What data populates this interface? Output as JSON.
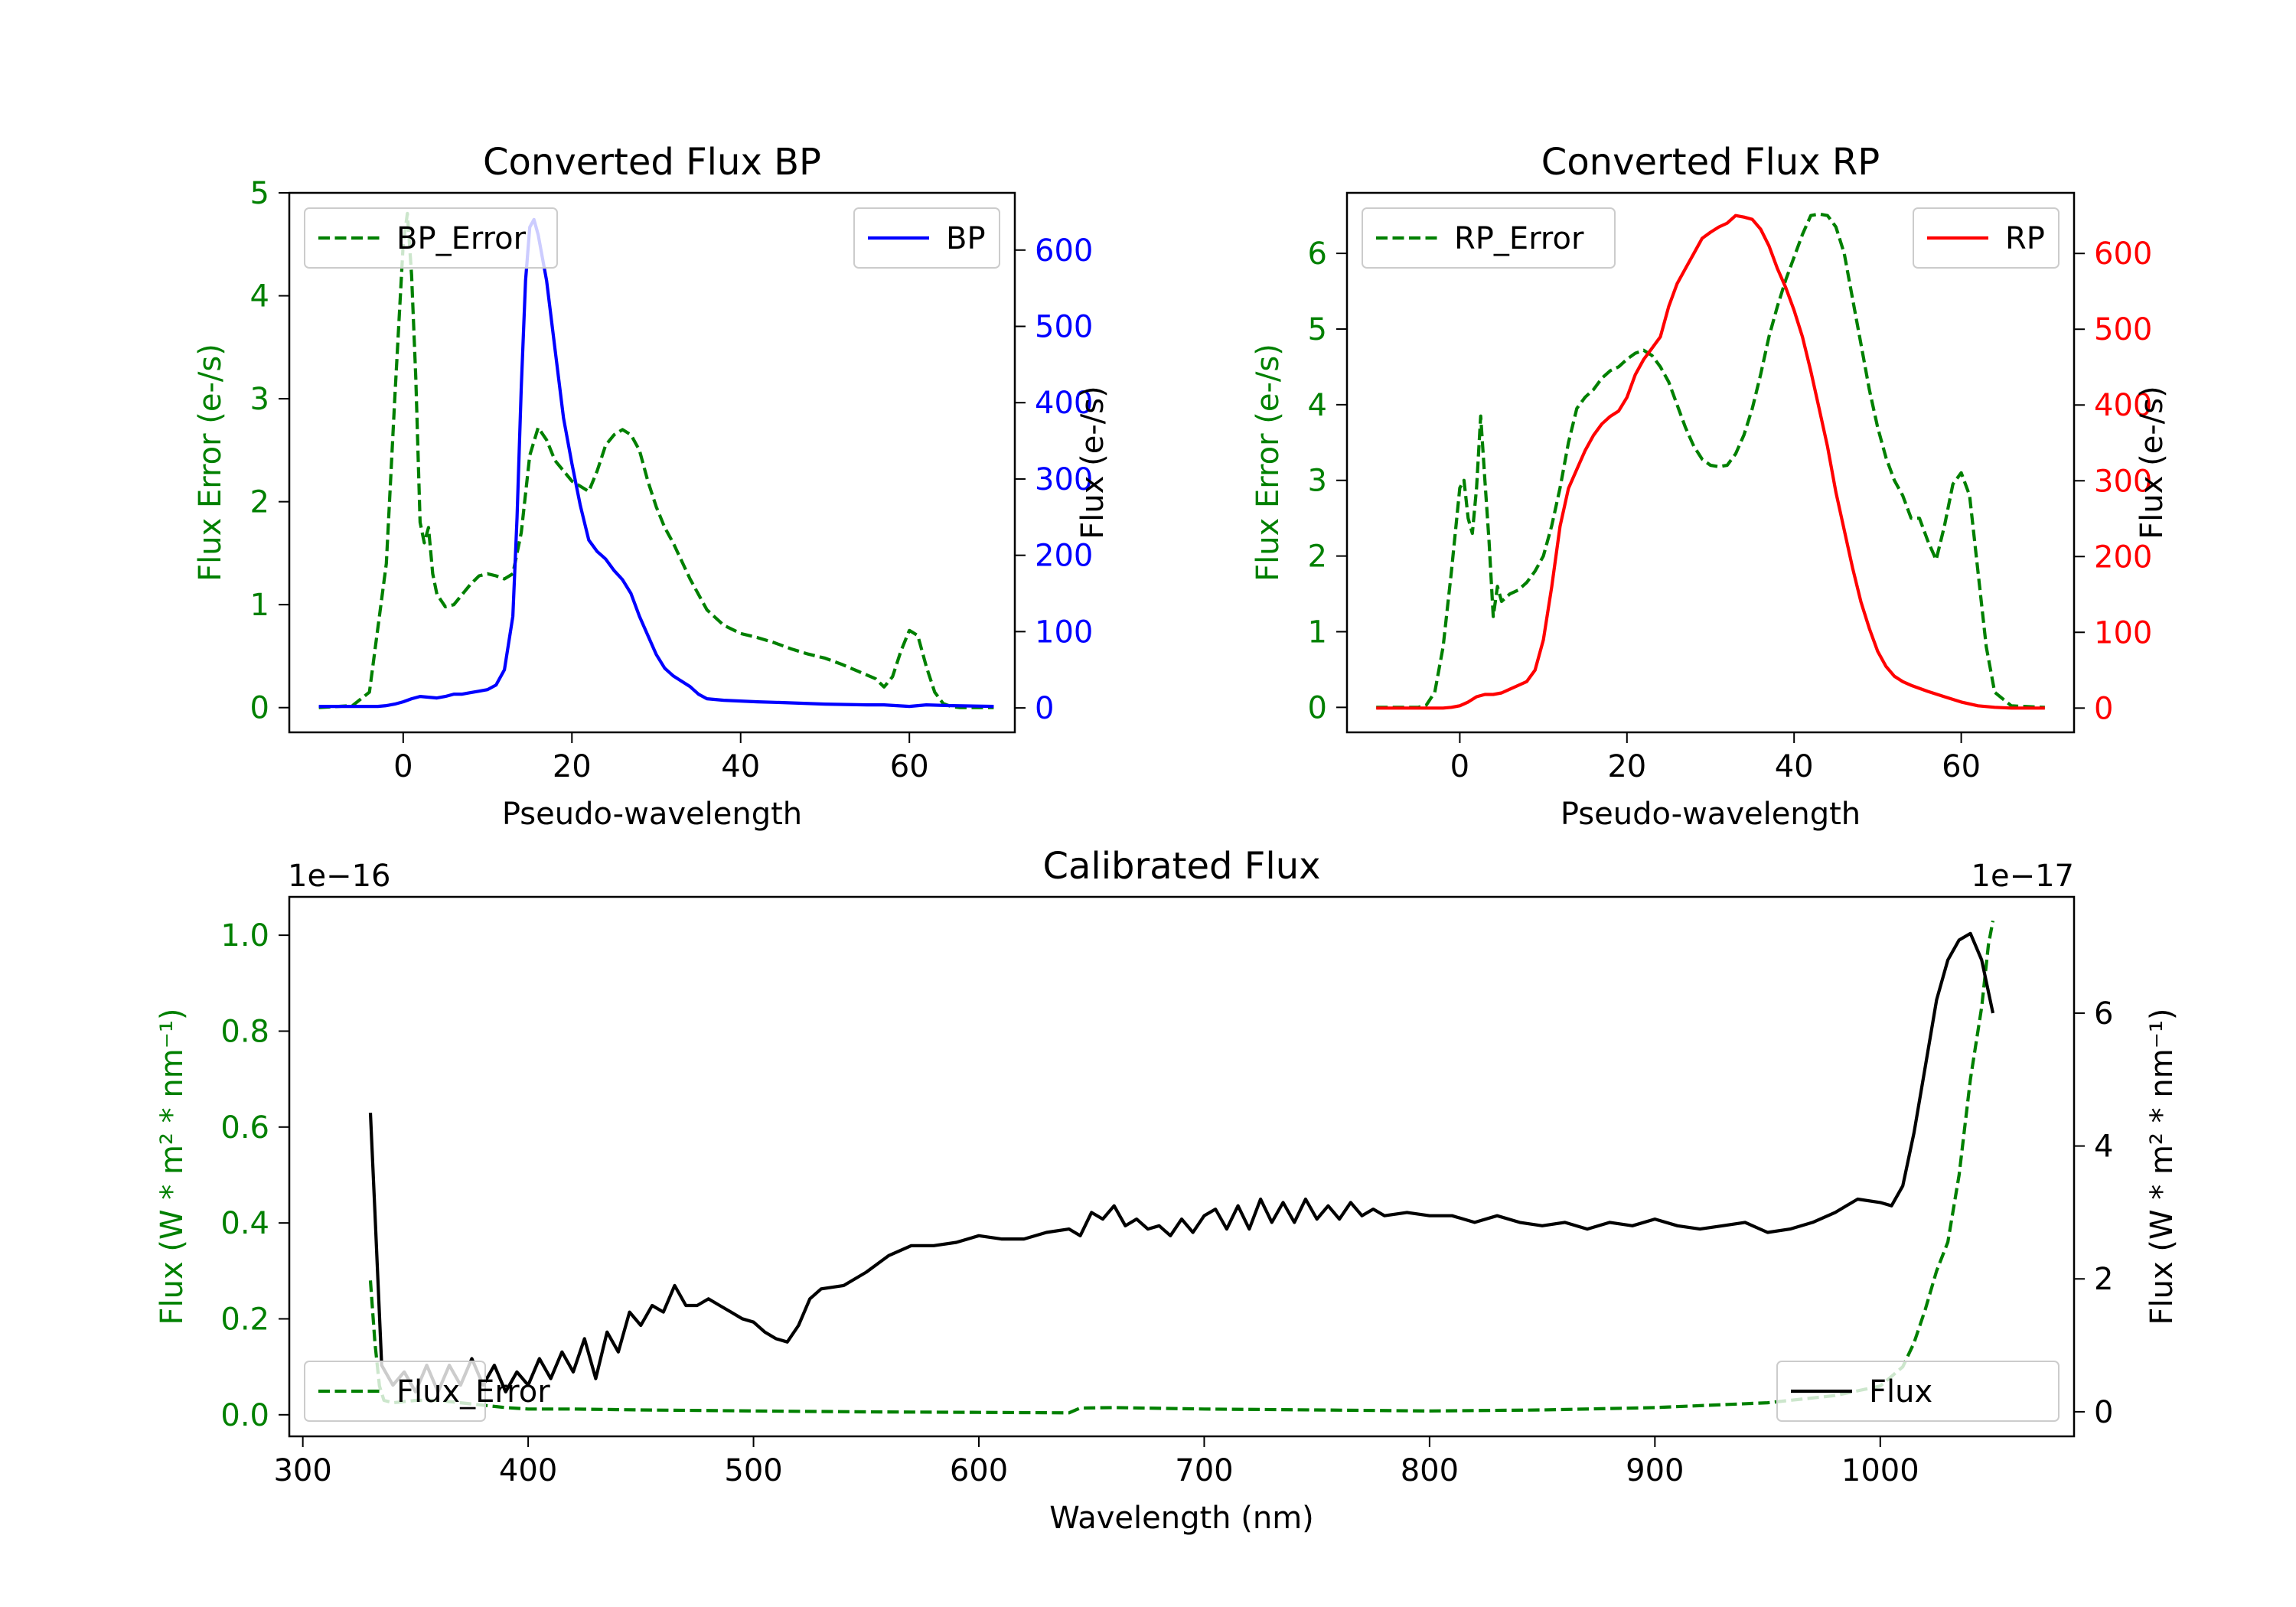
{
  "chart_data": [
    {
      "type": "line",
      "title": "Converted Flux BP",
      "xlabel": "Pseudo-wavelength",
      "ylabel_left": "Flux Error (e-/s)",
      "ylabel_right": "Flux (e-/s)",
      "xlim": [
        -13.5,
        72.5
      ],
      "ylim_left": [
        -0.24,
        5.0
      ],
      "ylim_right": [
        -32,
        675
      ],
      "x_ticks": [
        0,
        20,
        40,
        60
      ],
      "y_ticks_left": [
        0,
        1,
        2,
        3,
        4,
        5
      ],
      "y_ticks_right": [
        0,
        100,
        200,
        300,
        400,
        500,
        600
      ],
      "legend_left": "top-left",
      "legend_right": "top-right",
      "series": [
        {
          "name": "BP_Error",
          "axis": "left",
          "color": "#008000",
          "dash": true,
          "x": [
            -10,
            -6,
            -4,
            -2,
            -1,
            0,
            0.5,
            1,
            1.5,
            2,
            2.5,
            3,
            3.5,
            4,
            5,
            6,
            7,
            8,
            9,
            10,
            11,
            12,
            13,
            14,
            15,
            16,
            17,
            18,
            19,
            20,
            21,
            22,
            23,
            24,
            25,
            26,
            27,
            28,
            29,
            30,
            31,
            32,
            34,
            36,
            38,
            40,
            42,
            44,
            46,
            48,
            50,
            52,
            54,
            56,
            57,
            58,
            59,
            60,
            61,
            62,
            63,
            64,
            65,
            66,
            68,
            70
          ],
          "values": [
            0,
            0.02,
            0.15,
            1.4,
            3.0,
            4.5,
            4.8,
            4.2,
            3.2,
            1.8,
            1.6,
            1.75,
            1.3,
            1.1,
            0.98,
            1.0,
            1.1,
            1.2,
            1.28,
            1.3,
            1.28,
            1.25,
            1.3,
            1.7,
            2.45,
            2.72,
            2.6,
            2.4,
            2.3,
            2.2,
            2.15,
            2.1,
            2.3,
            2.55,
            2.65,
            2.7,
            2.65,
            2.5,
            2.2,
            1.95,
            1.75,
            1.6,
            1.25,
            0.95,
            0.8,
            0.72,
            0.68,
            0.63,
            0.57,
            0.52,
            0.48,
            0.42,
            0.35,
            0.28,
            0.2,
            0.3,
            0.55,
            0.75,
            0.7,
            0.4,
            0.15,
            0.04,
            0.01,
            0,
            0,
            0
          ]
        },
        {
          "name": "BP",
          "axis": "right",
          "color": "#0000ff",
          "dash": false,
          "x": [
            -10,
            -5,
            -3,
            -2,
            -1,
            0,
            1,
            2,
            3,
            4,
            5,
            6,
            7,
            8,
            9,
            10,
            11,
            12,
            13,
            13.5,
            14,
            14.5,
            15,
            15.5,
            16,
            17,
            18,
            19,
            20,
            21,
            22,
            23,
            24,
            25,
            26,
            27,
            28,
            29,
            30,
            31,
            32,
            33,
            34,
            35,
            36,
            38,
            40,
            42,
            45,
            50,
            55,
            57,
            60,
            62,
            65,
            70
          ],
          "values": [
            2,
            2,
            2,
            3,
            5,
            8,
            12,
            15,
            14,
            13,
            15,
            18,
            18,
            20,
            22,
            24,
            30,
            50,
            120,
            250,
            420,
            560,
            630,
            640,
            620,
            560,
            470,
            380,
            320,
            265,
            220,
            205,
            195,
            180,
            168,
            150,
            120,
            95,
            70,
            52,
            42,
            35,
            28,
            18,
            12,
            10,
            9,
            8,
            7,
            5,
            4,
            4,
            2,
            4,
            3,
            2
          ]
        }
      ]
    },
    {
      "type": "line",
      "title": "Converted Flux RP",
      "xlabel": "Pseudo-wavelength",
      "ylabel_left": "Flux Error (e-/s)",
      "ylabel_right": "Flux (e-/s)",
      "xlim": [
        -13.5,
        73.5
      ],
      "ylim_left": [
        -0.33,
        6.8
      ],
      "ylim_right": [
        -32,
        680
      ],
      "x_ticks": [
        0,
        20,
        40,
        60
      ],
      "y_ticks_left": [
        0,
        1,
        2,
        3,
        4,
        5,
        6
      ],
      "y_ticks_right": [
        0,
        100,
        200,
        300,
        400,
        500,
        600
      ],
      "legend_left": "top-left",
      "legend_right": "top-right",
      "series": [
        {
          "name": "RP_Error",
          "axis": "left",
          "color": "#008000",
          "dash": true,
          "x": [
            -10,
            -5,
            -4,
            -3,
            -2,
            -1,
            0,
            0.5,
            1,
            1.5,
            2,
            2.5,
            3,
            3.5,
            4,
            4.5,
            5,
            6,
            7,
            8,
            9,
            10,
            11,
            12,
            13,
            14,
            15,
            16,
            17,
            18,
            19,
            20,
            21,
            22,
            23,
            24,
            25,
            26,
            27,
            28,
            29,
            30,
            31,
            32,
            33,
            34,
            35,
            36,
            37,
            38,
            39,
            40,
            41,
            42,
            43,
            44,
            45,
            46,
            47,
            48,
            49,
            50,
            51,
            52,
            53,
            54,
            55,
            56,
            57,
            58,
            59,
            60,
            61,
            62,
            63,
            64,
            66,
            70
          ],
          "values": [
            0,
            0,
            0.03,
            0.2,
            0.8,
            1.8,
            2.9,
            3.0,
            2.5,
            2.3,
            2.9,
            3.85,
            3.0,
            2.2,
            1.2,
            1.6,
            1.4,
            1.5,
            1.55,
            1.65,
            1.8,
            2.0,
            2.4,
            2.9,
            3.5,
            3.95,
            4.1,
            4.2,
            4.35,
            4.45,
            4.5,
            4.6,
            4.68,
            4.72,
            4.65,
            4.5,
            4.3,
            4.0,
            3.7,
            3.45,
            3.28,
            3.2,
            3.18,
            3.2,
            3.35,
            3.6,
            3.95,
            4.4,
            4.9,
            5.3,
            5.65,
            5.95,
            6.25,
            6.5,
            6.52,
            6.5,
            6.35,
            6.0,
            5.4,
            4.8,
            4.2,
            3.7,
            3.3,
            3.0,
            2.8,
            2.5,
            2.5,
            2.2,
            1.95,
            2.4,
            2.95,
            3.1,
            2.8,
            1.8,
            0.8,
            0.2,
            0.02,
            0
          ]
        },
        {
          "name": "RP",
          "axis": "right",
          "color": "#ff0000",
          "dash": false,
          "x": [
            -10,
            -5,
            -3,
            -2,
            -1,
            0,
            1,
            2,
            3,
            4,
            5,
            6,
            7,
            8,
            9,
            10,
            11,
            12,
            13,
            14,
            15,
            16,
            17,
            18,
            19,
            20,
            21,
            22,
            23,
            24,
            25,
            26,
            27,
            28,
            29,
            30,
            31,
            32,
            33,
            34,
            35,
            36,
            37,
            38,
            39,
            40,
            41,
            42,
            43,
            44,
            45,
            46,
            47,
            48,
            49,
            50,
            51,
            52,
            53,
            54,
            56,
            58,
            60,
            62,
            64,
            66,
            70
          ],
          "values": [
            0,
            0,
            0,
            0,
            1,
            3,
            8,
            15,
            18,
            18,
            20,
            25,
            30,
            35,
            50,
            90,
            160,
            240,
            290,
            315,
            340,
            360,
            375,
            385,
            392,
            410,
            440,
            460,
            475,
            490,
            530,
            560,
            580,
            600,
            620,
            628,
            635,
            640,
            650,
            648,
            645,
            632,
            610,
            580,
            555,
            525,
            490,
            445,
            395,
            345,
            285,
            235,
            185,
            140,
            105,
            75,
            55,
            42,
            35,
            30,
            22,
            15,
            8,
            3,
            1,
            0,
            0
          ]
        }
      ]
    },
    {
      "type": "line",
      "title": "Calibrated Flux",
      "xlabel": "Wavelength (nm)",
      "ylabel_left": "Flux (W * m² * nm⁻¹)",
      "ylabel_right": "Flux (W * m² * nm⁻¹)",
      "offset_left": "1e−16",
      "offset_right": "1e−17",
      "xlim": [
        294,
        1086
      ],
      "ylim_left": [
        -0.045,
        1.08
      ],
      "ylim_right": [
        -0.37,
        7.75
      ],
      "x_ticks": [
        300,
        400,
        500,
        600,
        700,
        800,
        900,
        1000
      ],
      "y_ticks_left": [
        0.0,
        0.2,
        0.4,
        0.6,
        0.8,
        1.0
      ],
      "y_ticks_right": [
        0,
        2,
        4,
        6
      ],
      "legend_left": "bottom-left",
      "legend_right": "bottom-right",
      "series": [
        {
          "name": "Flux_Error",
          "axis": "left",
          "color": "#008000",
          "dash": true,
          "x": [
            330,
            332,
            334,
            336,
            340,
            350,
            360,
            370,
            380,
            390,
            400,
            420,
            450,
            500,
            550,
            600,
            640,
            645,
            660,
            700,
            750,
            800,
            850,
            900,
            950,
            980,
            1000,
            1010,
            1015,
            1020,
            1025,
            1030,
            1035,
            1040,
            1045,
            1048,
            1050
          ],
          "values": [
            0.28,
            0.15,
            0.06,
            0.03,
            0.025,
            0.03,
            0.03,
            0.025,
            0.02,
            0.015,
            0.012,
            0.012,
            0.01,
            0.008,
            0.006,
            0.005,
            0.004,
            0.014,
            0.015,
            0.012,
            0.01,
            0.008,
            0.01,
            0.015,
            0.025,
            0.04,
            0.06,
            0.1,
            0.15,
            0.22,
            0.3,
            0.36,
            0.5,
            0.7,
            0.85,
            0.98,
            1.03
          ]
        },
        {
          "name": "Flux",
          "axis": "right",
          "color": "#000000",
          "dash": false,
          "x": [
            330,
            332,
            335,
            340,
            345,
            350,
            355,
            360,
            365,
            370,
            375,
            380,
            385,
            390,
            395,
            400,
            405,
            410,
            415,
            420,
            425,
            430,
            435,
            440,
            445,
            450,
            455,
            460,
            465,
            470,
            475,
            480,
            485,
            490,
            495,
            500,
            505,
            510,
            515,
            520,
            525,
            530,
            540,
            550,
            560,
            570,
            580,
            590,
            600,
            610,
            620,
            630,
            640,
            645,
            650,
            655,
            660,
            665,
            670,
            675,
            680,
            685,
            690,
            695,
            700,
            705,
            710,
            715,
            720,
            725,
            730,
            735,
            740,
            745,
            750,
            755,
            760,
            765,
            770,
            775,
            780,
            790,
            800,
            810,
            820,
            830,
            840,
            850,
            860,
            870,
            880,
            890,
            900,
            910,
            920,
            930,
            940,
            950,
            960,
            970,
            980,
            990,
            1000,
            1005,
            1010,
            1015,
            1020,
            1025,
            1030,
            1035,
            1040,
            1045,
            1050
          ],
          "values": [
            4.5,
            3.0,
            0.7,
            0.4,
            0.6,
            0.3,
            0.7,
            0.3,
            0.7,
            0.4,
            0.8,
            0.4,
            0.7,
            0.3,
            0.6,
            0.4,
            0.8,
            0.5,
            0.9,
            0.6,
            1.1,
            0.5,
            1.2,
            0.9,
            1.5,
            1.3,
            1.6,
            1.5,
            1.9,
            1.6,
            1.6,
            1.7,
            1.6,
            1.5,
            1.4,
            1.35,
            1.2,
            1.1,
            1.05,
            1.3,
            1.7,
            1.85,
            1.9,
            2.1,
            2.35,
            2.5,
            2.5,
            2.55,
            2.65,
            2.6,
            2.6,
            2.7,
            2.75,
            2.65,
            3.0,
            2.9,
            3.1,
            2.8,
            2.9,
            2.75,
            2.8,
            2.65,
            2.9,
            2.7,
            2.95,
            3.05,
            2.75,
            3.1,
            2.75,
            3.2,
            2.85,
            3.15,
            2.85,
            3.2,
            2.9,
            3.1,
            2.9,
            3.15,
            2.95,
            3.05,
            2.95,
            3.0,
            2.95,
            2.95,
            2.85,
            2.95,
            2.85,
            2.8,
            2.85,
            2.75,
            2.85,
            2.8,
            2.9,
            2.8,
            2.75,
            2.8,
            2.85,
            2.7,
            2.75,
            2.85,
            3.0,
            3.2,
            3.15,
            3.1,
            3.4,
            4.2,
            5.2,
            6.2,
            6.8,
            7.1,
            7.2,
            6.8,
            6.0
          ]
        }
      ]
    }
  ]
}
